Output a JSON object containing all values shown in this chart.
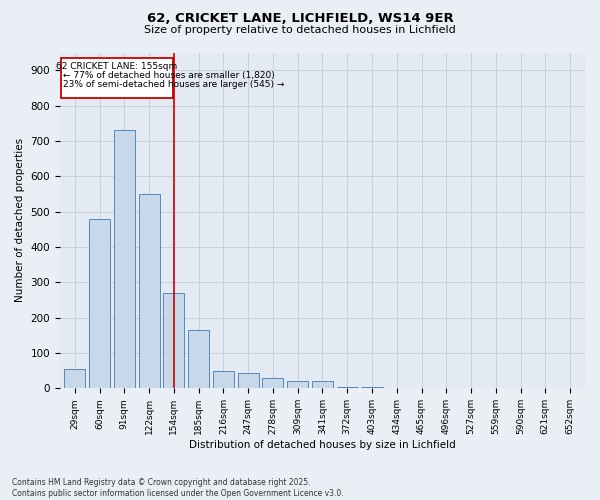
{
  "title_line1": "62, CRICKET LANE, LICHFIELD, WS14 9ER",
  "title_line2": "Size of property relative to detached houses in Lichfield",
  "xlabel": "Distribution of detached houses by size in Lichfield",
  "ylabel": "Number of detached properties",
  "categories": [
    "29sqm",
    "60sqm",
    "91sqm",
    "122sqm",
    "154sqm",
    "185sqm",
    "216sqm",
    "247sqm",
    "278sqm",
    "309sqm",
    "341sqm",
    "372sqm",
    "403sqm",
    "434sqm",
    "465sqm",
    "496sqm",
    "527sqm",
    "559sqm",
    "590sqm",
    "621sqm",
    "652sqm"
  ],
  "values": [
    55,
    480,
    730,
    550,
    270,
    165,
    50,
    43,
    28,
    20,
    20,
    5,
    3,
    0,
    0,
    0,
    0,
    0,
    0,
    0,
    0
  ],
  "bar_color": "#c8d8eb",
  "bar_edge_color": "#5588bb",
  "grid_color": "#c8d0de",
  "bg_color": "#e4eaf4",
  "fig_color": "#eaeef5",
  "property_label": "62 CRICKET LANE: 155sqm",
  "annotation_line1": "← 77% of detached houses are smaller (1,820)",
  "annotation_line2": "23% of semi-detached houses are larger (545) →",
  "annotation_box_color": "#cc0000",
  "ylim": [
    0,
    950
  ],
  "yticks": [
    0,
    100,
    200,
    300,
    400,
    500,
    600,
    700,
    800,
    900
  ],
  "footer_line1": "Contains HM Land Registry data © Crown copyright and database right 2025.",
  "footer_line2": "Contains public sector information licensed under the Open Government Licence v3.0."
}
